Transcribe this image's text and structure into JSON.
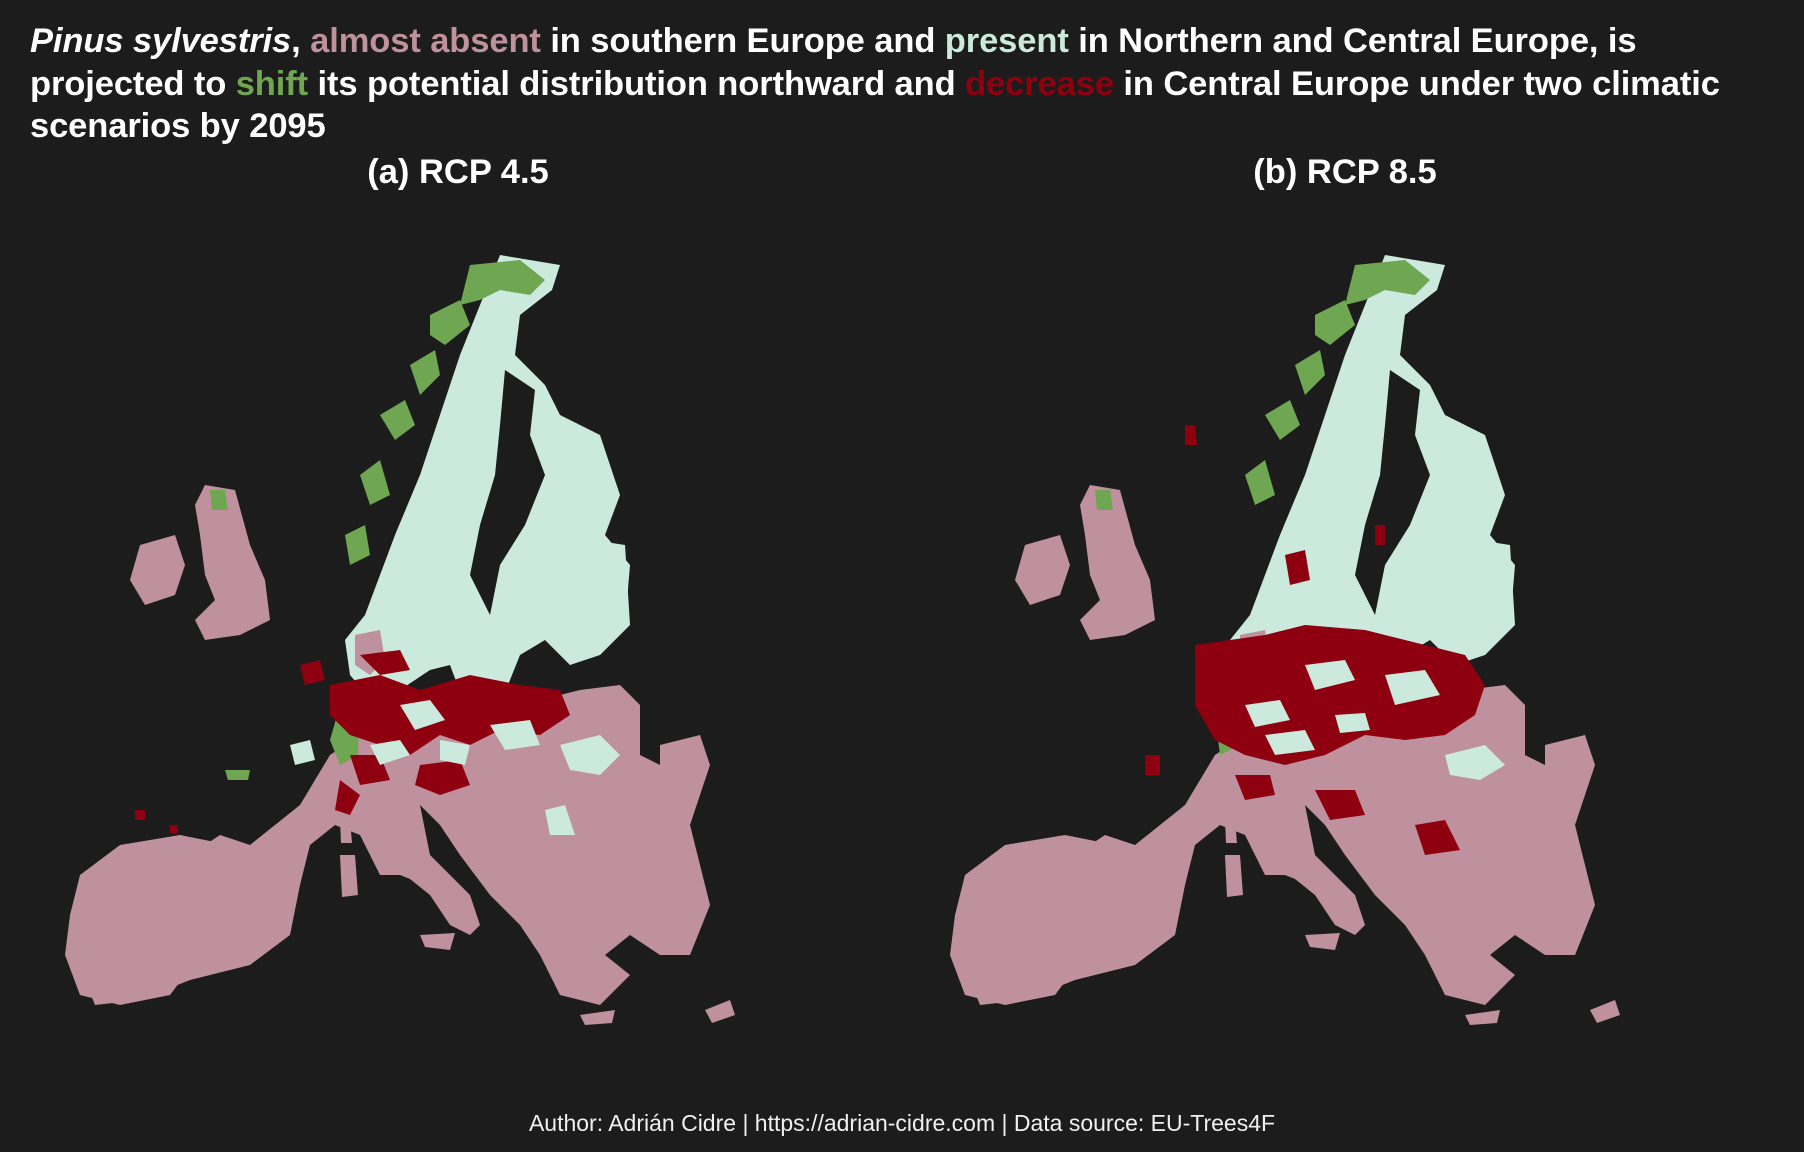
{
  "colors": {
    "background": "#1c1c1c",
    "almost_absent": "#bf909e",
    "present": "#cbe9dc",
    "shift": "#6fa652",
    "decrease": "#8e0010",
    "text": "#ffffff"
  },
  "title": {
    "species": "Pinus sylvestris",
    "comma": ",",
    "almost_absent": "almost absent",
    "part2": " in southern Europe and ",
    "present": "present",
    "part3": " in Northern and Central Europe, is projected to ",
    "shift": "shift",
    "part4": " its potential distribution northward and ",
    "decrease": "decrease",
    "part5": " in Central Europe under two climatic scenarios by 2095"
  },
  "panels": [
    {
      "title": "(a) RCP 4.5"
    },
    {
      "title": "(b) RCP 8.5"
    }
  ],
  "caption": "Author: Adrián Cidre | https://adrian-cidre.com | Data source: EU-Trees4F"
}
